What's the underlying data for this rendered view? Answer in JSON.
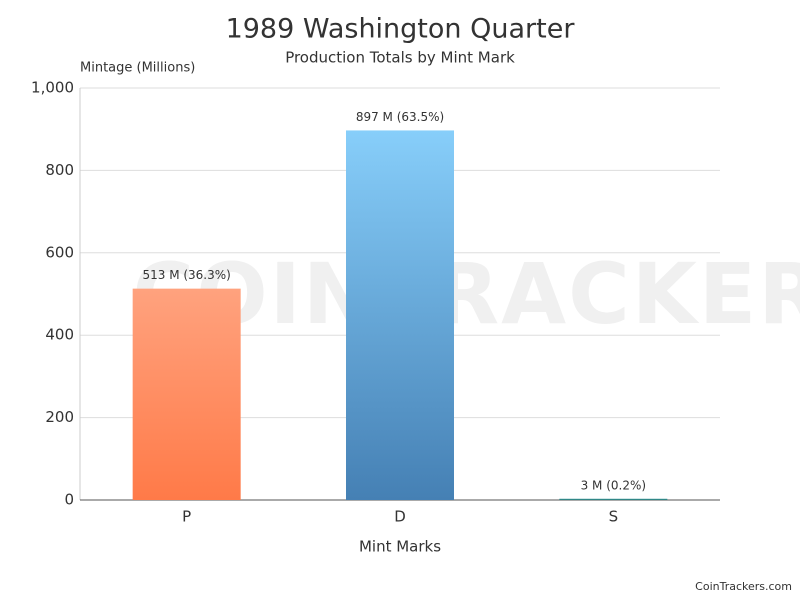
{
  "chart_data": {
    "type": "bar",
    "title": "1989 Washington Quarter",
    "subtitle": "Production Totals by Mint Mark",
    "y_label": "Mintage (Millions)",
    "x_label": "Mint Marks",
    "categories": [
      "P",
      "D",
      "S"
    ],
    "values": [
      513,
      897,
      3
    ],
    "value_labels": [
      "513 M (36.3%)",
      "897 M (63.5%)",
      "3 M (0.2%)"
    ],
    "gradients": [
      [
        "#ffa27e",
        "#ff7a48"
      ],
      [
        "#87cefa",
        "#4580b4"
      ],
      [
        "#3a9a9a",
        "#2a7a7a"
      ]
    ],
    "ylim": [
      0,
      1000
    ],
    "yticks": [
      0,
      200,
      400,
      600,
      800,
      {
        "value": 1000,
        "label": "1,000"
      }
    ],
    "grid": true,
    "watermark": "COINTRACKERS",
    "credit": "CoinTrackers.com"
  }
}
